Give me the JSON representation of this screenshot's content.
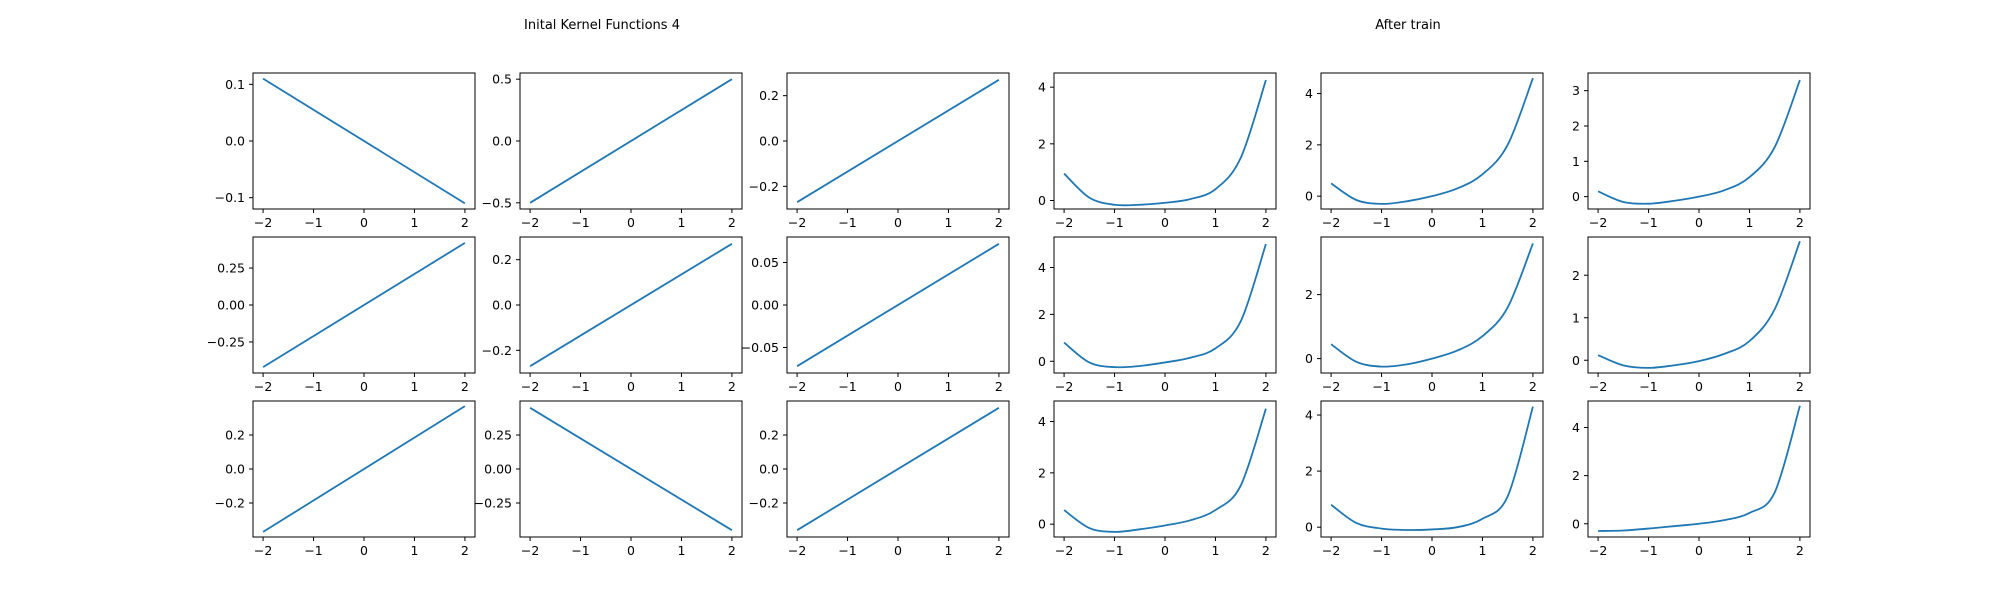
{
  "titles": {
    "left": "Inital Kernel Functions 4",
    "right": "After train"
  },
  "series_color": "#1f77b4",
  "x_ticks": [
    "−2",
    "−1",
    "0",
    "1",
    "2"
  ],
  "chart_data": [
    {
      "type": "line",
      "group": "Inital Kernel Functions 4",
      "row": 0,
      "col": 0,
      "shape": "linear",
      "x": [
        -2,
        2
      ],
      "y": [
        0.11,
        -0.11
      ],
      "ylim": [
        -0.12,
        0.12
      ],
      "xlim": [
        -2.2,
        2.2
      ],
      "yticks": [
        0.1,
        0.0,
        -0.1
      ],
      "ytick_labels": [
        "0.1",
        "0.0",
        "−0.1"
      ]
    },
    {
      "type": "line",
      "group": "Inital Kernel Functions 4",
      "row": 0,
      "col": 1,
      "shape": "linear",
      "x": [
        -2,
        2
      ],
      "y": [
        -0.5,
        0.5
      ],
      "ylim": [
        -0.55,
        0.55
      ],
      "xlim": [
        -2.2,
        2.2
      ],
      "yticks": [
        0.5,
        0.0,
        -0.5
      ],
      "ytick_labels": [
        "0.5",
        "0.0",
        "−0.5"
      ]
    },
    {
      "type": "line",
      "group": "Inital Kernel Functions 4",
      "row": 0,
      "col": 2,
      "shape": "linear",
      "x": [
        -2,
        2
      ],
      "y": [
        -0.27,
        0.27
      ],
      "ylim": [
        -0.3,
        0.3
      ],
      "xlim": [
        -2.2,
        2.2
      ],
      "yticks": [
        0.2,
        0.0,
        -0.2
      ],
      "ytick_labels": [
        "0.2",
        "0.0",
        "−0.2"
      ]
    },
    {
      "type": "line",
      "group": "After train",
      "row": 0,
      "col": 3,
      "shape": "curve",
      "x": [
        -2,
        -1.5,
        -1,
        -0.5,
        0,
        0.5,
        1,
        1.5,
        2
      ],
      "y": [
        0.95,
        0.1,
        -0.15,
        -0.15,
        -0.08,
        0.05,
        0.4,
        1.5,
        4.25
      ],
      "ylim": [
        -0.3,
        4.5
      ],
      "xlim": [
        -2.2,
        2.2
      ],
      "yticks": [
        4,
        2,
        0
      ],
      "ytick_labels": [
        "4",
        "2",
        "0"
      ]
    },
    {
      "type": "line",
      "group": "After train",
      "row": 0,
      "col": 4,
      "shape": "curve",
      "x": [
        -2,
        -1.5,
        -1,
        -0.5,
        0,
        0.5,
        1,
        1.5,
        2
      ],
      "y": [
        0.5,
        -0.15,
        -0.3,
        -0.2,
        0.0,
        0.3,
        0.85,
        2.0,
        4.6
      ],
      "ylim": [
        -0.5,
        4.8
      ],
      "xlim": [
        -2.2,
        2.2
      ],
      "yticks": [
        4,
        2,
        0
      ],
      "ytick_labels": [
        "4",
        "2",
        "0"
      ]
    },
    {
      "type": "line",
      "group": "After train",
      "row": 0,
      "col": 5,
      "shape": "curve",
      "x": [
        -2,
        -1.5,
        -1,
        -0.5,
        0,
        0.5,
        1,
        1.5,
        2
      ],
      "y": [
        0.15,
        -0.15,
        -0.2,
        -0.12,
        0.0,
        0.18,
        0.55,
        1.4,
        3.3
      ],
      "ylim": [
        -0.35,
        3.5
      ],
      "xlim": [
        -2.2,
        2.2
      ],
      "yticks": [
        3,
        2,
        1,
        0
      ],
      "ytick_labels": [
        "3",
        "2",
        "1",
        "0"
      ]
    },
    {
      "type": "line",
      "group": "Inital Kernel Functions 4",
      "row": 1,
      "col": 0,
      "shape": "linear",
      "x": [
        -2,
        2
      ],
      "y": [
        -0.42,
        0.42
      ],
      "ylim": [
        -0.46,
        0.46
      ],
      "xlim": [
        -2.2,
        2.2
      ],
      "yticks": [
        0.25,
        0.0,
        -0.25
      ],
      "ytick_labels": [
        "0.25",
        "0.00",
        "−0.25"
      ]
    },
    {
      "type": "line",
      "group": "Inital Kernel Functions 4",
      "row": 1,
      "col": 1,
      "shape": "linear",
      "x": [
        -2,
        2
      ],
      "y": [
        -0.27,
        0.27
      ],
      "ylim": [
        -0.3,
        0.3
      ],
      "xlim": [
        -2.2,
        2.2
      ],
      "yticks": [
        0.2,
        0.0,
        -0.2
      ],
      "ytick_labels": [
        "0.2",
        "0.0",
        "−0.2"
      ]
    },
    {
      "type": "line",
      "group": "Inital Kernel Functions 4",
      "row": 1,
      "col": 2,
      "shape": "linear",
      "x": [
        -2,
        2
      ],
      "y": [
        -0.072,
        0.072
      ],
      "ylim": [
        -0.08,
        0.08
      ],
      "xlim": [
        -2.2,
        2.2
      ],
      "yticks": [
        0.05,
        0.0,
        -0.05
      ],
      "ytick_labels": [
        "0.05",
        "0.00",
        "−0.05"
      ]
    },
    {
      "type": "line",
      "group": "After train",
      "row": 1,
      "col": 3,
      "shape": "curve",
      "x": [
        -2,
        -1.5,
        -1,
        -0.5,
        0,
        0.5,
        1,
        1.5,
        2
      ],
      "y": [
        0.8,
        -0.05,
        -0.25,
        -0.2,
        -0.05,
        0.15,
        0.55,
        1.7,
        5.0
      ],
      "ylim": [
        -0.5,
        5.3
      ],
      "xlim": [
        -2.2,
        2.2
      ],
      "yticks": [
        4,
        2,
        0
      ],
      "ytick_labels": [
        "4",
        "2",
        "0"
      ]
    },
    {
      "type": "line",
      "group": "After train",
      "row": 1,
      "col": 4,
      "shape": "curve",
      "x": [
        -2,
        -1.5,
        -1,
        -0.5,
        0,
        0.5,
        1,
        1.5,
        2
      ],
      "y": [
        0.45,
        -0.1,
        -0.25,
        -0.18,
        0.0,
        0.25,
        0.7,
        1.6,
        3.6
      ],
      "ylim": [
        -0.45,
        3.8
      ],
      "xlim": [
        -2.2,
        2.2
      ],
      "yticks": [
        2,
        0
      ],
      "ytick_labels": [
        "2",
        "0"
      ]
    },
    {
      "type": "line",
      "group": "After train",
      "row": 1,
      "col": 5,
      "shape": "curve",
      "x": [
        -2,
        -1.5,
        -1,
        -0.5,
        0,
        0.5,
        1,
        1.5,
        2
      ],
      "y": [
        0.12,
        -0.12,
        -0.18,
        -0.12,
        -0.02,
        0.15,
        0.45,
        1.2,
        2.8
      ],
      "ylim": [
        -0.3,
        2.9
      ],
      "xlim": [
        -2.2,
        2.2
      ],
      "yticks": [
        2,
        1,
        0
      ],
      "ytick_labels": [
        "2",
        "1",
        "0"
      ]
    },
    {
      "type": "line",
      "group": "Inital Kernel Functions 4",
      "row": 2,
      "col": 0,
      "shape": "linear",
      "x": [
        -2,
        2
      ],
      "y": [
        -0.37,
        0.37
      ],
      "ylim": [
        -0.4,
        0.4
      ],
      "xlim": [
        -2.2,
        2.2
      ],
      "yticks": [
        0.2,
        0.0,
        -0.2
      ],
      "ytick_labels": [
        "0.2",
        "0.0",
        "−0.2"
      ]
    },
    {
      "type": "line",
      "group": "Inital Kernel Functions 4",
      "row": 2,
      "col": 1,
      "shape": "linear",
      "x": [
        -2,
        2
      ],
      "y": [
        0.45,
        -0.45
      ],
      "ylim": [
        -0.5,
        0.5
      ],
      "xlim": [
        -2.2,
        2.2
      ],
      "yticks": [
        0.25,
        0.0,
        -0.25
      ],
      "ytick_labels": [
        "0.25",
        "0.00",
        "−0.25"
      ]
    },
    {
      "type": "line",
      "group": "Inital Kernel Functions 4",
      "row": 2,
      "col": 2,
      "shape": "linear",
      "x": [
        -2,
        2
      ],
      "y": [
        -0.36,
        0.36
      ],
      "ylim": [
        -0.4,
        0.4
      ],
      "xlim": [
        -2.2,
        2.2
      ],
      "yticks": [
        0.2,
        0.0,
        -0.2
      ],
      "ytick_labels": [
        "0.2",
        "0.0",
        "−0.2"
      ]
    },
    {
      "type": "line",
      "group": "After train",
      "row": 2,
      "col": 3,
      "shape": "curve",
      "x": [
        -2,
        -1.5,
        -1,
        -0.5,
        0,
        0.5,
        1,
        1.5,
        2
      ],
      "y": [
        0.55,
        -0.15,
        -0.3,
        -0.2,
        -0.05,
        0.15,
        0.55,
        1.5,
        4.5
      ],
      "ylim": [
        -0.5,
        4.8
      ],
      "xlim": [
        -2.2,
        2.2
      ],
      "yticks": [
        4,
        2,
        0
      ],
      "ytick_labels": [
        "4",
        "2",
        "0"
      ]
    },
    {
      "type": "line",
      "group": "After train",
      "row": 2,
      "col": 4,
      "shape": "curve",
      "x": [
        -2,
        -1.5,
        -1,
        -0.5,
        0,
        0.5,
        1,
        1.5,
        2
      ],
      "y": [
        0.8,
        0.15,
        -0.05,
        -0.1,
        -0.08,
        0.0,
        0.3,
        1.1,
        4.3
      ],
      "ylim": [
        -0.35,
        4.5
      ],
      "xlim": [
        -2.2,
        2.2
      ],
      "yticks": [
        4,
        2,
        0
      ],
      "ytick_labels": [
        "4",
        "2",
        "0"
      ]
    },
    {
      "type": "line",
      "group": "After train",
      "row": 2,
      "col": 5,
      "shape": "curve",
      "x": [
        -2,
        -1.5,
        -1,
        -0.5,
        0,
        0.5,
        1,
        1.5,
        2
      ],
      "y": [
        -0.3,
        -0.28,
        -0.2,
        -0.1,
        0.0,
        0.15,
        0.45,
        1.3,
        4.9
      ],
      "ylim": [
        -0.55,
        5.1
      ],
      "xlim": [
        -2.2,
        2.2
      ],
      "yticks": [
        4,
        2,
        0
      ],
      "ytick_labels": [
        "4",
        "2",
        "0"
      ]
    }
  ]
}
